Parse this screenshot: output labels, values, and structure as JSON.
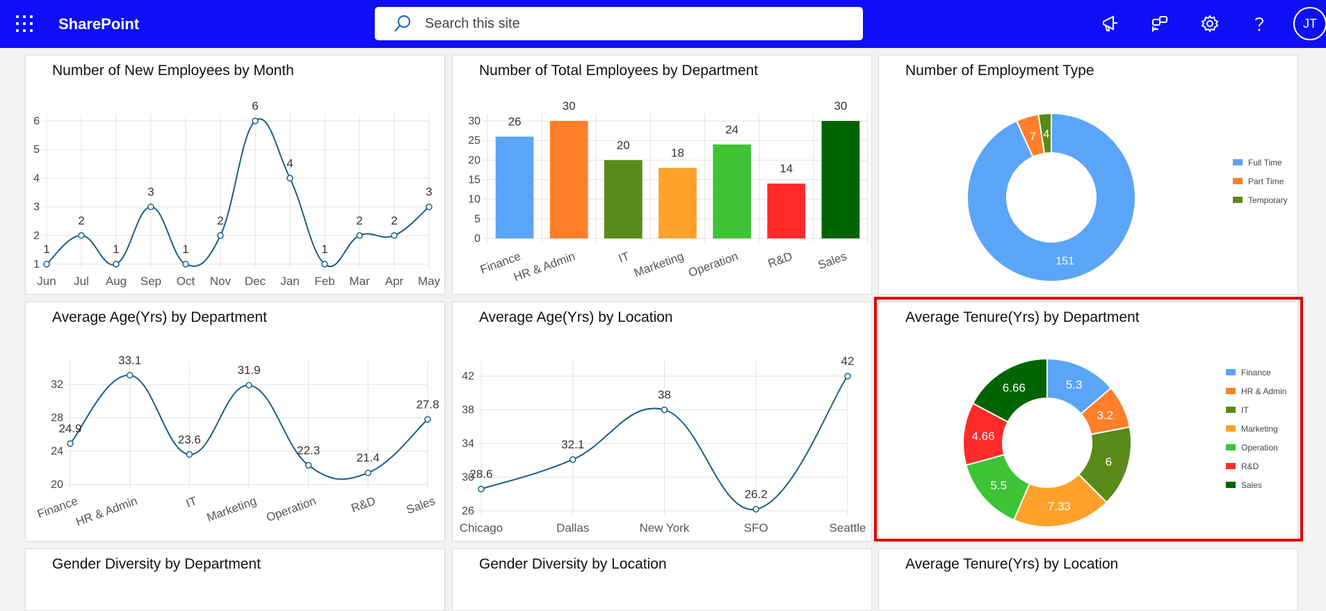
{
  "header": {
    "brand": "SharePoint",
    "search_placeholder": "Search this site",
    "avatar_initials": "JT",
    "bar_color": "#0f0ff5"
  },
  "cards": {
    "new_employees_by_month": {
      "title": "Number of New Employees by Month"
    },
    "total_employees_by_department": {
      "title": "Number of Total Employees by Department"
    },
    "employment_type": {
      "title": "Number of Employment Type"
    },
    "age_by_department": {
      "title": "Average Age(Yrs) by Department"
    },
    "age_by_location": {
      "title": "Average Age(Yrs) by Location"
    },
    "tenure_by_department": {
      "title": "Average Tenure(Yrs) by Department"
    },
    "gender_by_department": {
      "title": "Gender Diversity by Department"
    },
    "gender_by_location": {
      "title": "Gender Diversity by Location"
    },
    "tenure_by_location": {
      "title": "Average Tenure(Yrs) by Location"
    }
  },
  "chart_data": [
    {
      "id": "new_employees_by_month",
      "type": "line",
      "title": "Number of New Employees by Month",
      "categories": [
        "Jun",
        "Jul",
        "Aug",
        "Sep",
        "Oct",
        "Nov",
        "Dec",
        "Jan",
        "Feb",
        "Mar",
        "Apr",
        "May"
      ],
      "values": [
        1,
        2,
        1,
        3,
        1,
        2,
        6,
        4,
        1,
        2,
        2,
        3
      ],
      "ylim": [
        1,
        6
      ],
      "yticks": [
        1,
        2,
        3,
        4,
        5,
        6
      ],
      "color": "#1a5e8a",
      "grid": true
    },
    {
      "id": "total_employees_by_department",
      "type": "bar",
      "title": "Number of Total Employees by Department",
      "categories": [
        "Finance",
        "HR & Admin",
        "IT",
        "Marketing",
        "Operation",
        "R&D",
        "Sales"
      ],
      "values": [
        26,
        30,
        20,
        18,
        24,
        14,
        30
      ],
      "colors": [
        "#5aa5f7",
        "#ff7f2a",
        "#5a8a1a",
        "#ffa12a",
        "#3cc435",
        "#ff2a2a",
        "#006400"
      ],
      "ylim": [
        0,
        30
      ],
      "yticks": [
        0,
        5,
        10,
        15,
        20,
        25,
        30
      ],
      "grid": true
    },
    {
      "id": "employment_type",
      "type": "pie",
      "title": "Number of Employment Type",
      "categories": [
        "Full Time",
        "Part Time",
        "Temporary"
      ],
      "values": [
        151,
        7,
        4
      ],
      "colors": [
        "#5aa5f7",
        "#ff7f2a",
        "#5a8a1a"
      ],
      "legend": "right"
    },
    {
      "id": "age_by_department",
      "type": "line",
      "title": "Average Age(Yrs) by Department",
      "categories": [
        "Finance",
        "HR & Admin",
        "IT",
        "Marketing",
        "Operation",
        "R&D",
        "Sales"
      ],
      "values": [
        24.9,
        33.1,
        23.6,
        31.9,
        22.3,
        21.4,
        27.8
      ],
      "ylim": [
        20,
        34
      ],
      "yticks": [
        20,
        24,
        28,
        32
      ],
      "color": "#1a5e8a",
      "grid": true
    },
    {
      "id": "age_by_location",
      "type": "line",
      "title": "Average Age(Yrs) by Location",
      "categories": [
        "Chicago",
        "Dallas",
        "New York",
        "SFO",
        "Seattle"
      ],
      "values": [
        28.6,
        32.1,
        38,
        26.2,
        42
      ],
      "ylim": [
        26,
        43
      ],
      "yticks": [
        26,
        30,
        34,
        38,
        42
      ],
      "color": "#1a5e8a",
      "grid": true
    },
    {
      "id": "tenure_by_department",
      "type": "pie",
      "title": "Average Tenure(Yrs) by Department",
      "categories": [
        "Finance",
        "HR & Admin",
        "IT",
        "Marketing",
        "Operation",
        "R&D",
        "Sales"
      ],
      "values": [
        5.3,
        3.2,
        6,
        7.33,
        5.5,
        4.66,
        6.66
      ],
      "colors": [
        "#5aa5f7",
        "#ff7f2a",
        "#5a8a1a",
        "#ffa12a",
        "#3cc435",
        "#ff2a2a",
        "#006400"
      ],
      "legend": "right"
    }
  ]
}
